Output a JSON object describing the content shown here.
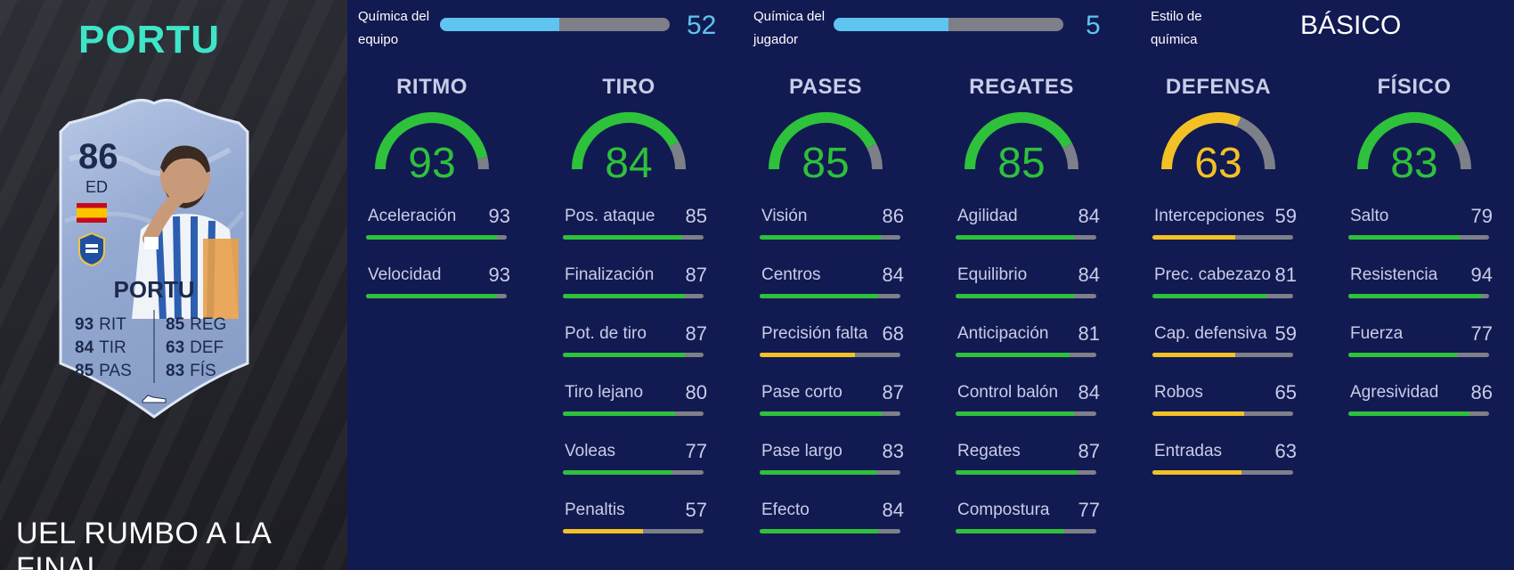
{
  "player": {
    "name_title": "PORTU",
    "card_name": "PORTU",
    "rating": "86",
    "position": "ED",
    "card_stats": [
      {
        "value": "93",
        "label": "RIT"
      },
      {
        "value": "84",
        "label": "TIR"
      },
      {
        "value": "85",
        "label": "PAS"
      },
      {
        "value": "85",
        "label": "REG"
      },
      {
        "value": "63",
        "label": "DEF"
      },
      {
        "value": "83",
        "label": "FÍS"
      }
    ],
    "promo": "UEL RUMBO A LA FINAL"
  },
  "chemistry": {
    "team": {
      "label_line1": "Química del",
      "label_line2": "equipo",
      "value": "52",
      "fill_fraction": 0.52
    },
    "player": {
      "label_line1": "Química del",
      "label_line2": "jugador",
      "value": "5",
      "fill_fraction": 0.5
    },
    "style": {
      "label_line1": "Estilo de",
      "label_line2": "química",
      "value": "BÁSICO"
    }
  },
  "colors": {
    "green": "#2ec13b",
    "yellow": "#f3c124",
    "track": "#7d8088",
    "chem_blue": "#5fc4f0",
    "accent": "#3ee5c8"
  },
  "categories": [
    {
      "name": "RITMO",
      "value": 93,
      "color": "green",
      "stats": [
        {
          "name": "Aceleración",
          "value": 93
        },
        {
          "name": "Velocidad",
          "value": 93
        }
      ]
    },
    {
      "name": "TIRO",
      "value": 84,
      "color": "green",
      "stats": [
        {
          "name": "Pos. ataque",
          "value": 85
        },
        {
          "name": "Finalización",
          "value": 87
        },
        {
          "name": "Pot. de tiro",
          "value": 87
        },
        {
          "name": "Tiro lejano",
          "value": 80
        },
        {
          "name": "Voleas",
          "value": 77
        },
        {
          "name": "Penaltis",
          "value": 57
        }
      ]
    },
    {
      "name": "PASES",
      "value": 85,
      "color": "green",
      "stats": [
        {
          "name": "Visión",
          "value": 86
        },
        {
          "name": "Centros",
          "value": 84
        },
        {
          "name": "Precisión falta",
          "value": 68
        },
        {
          "name": "Pase corto",
          "value": 87
        },
        {
          "name": "Pase largo",
          "value": 83
        },
        {
          "name": "Efecto",
          "value": 84
        }
      ]
    },
    {
      "name": "REGATES",
      "value": 85,
      "color": "green",
      "stats": [
        {
          "name": "Agilidad",
          "value": 84
        },
        {
          "name": "Equilibrio",
          "value": 84
        },
        {
          "name": "Anticipación",
          "value": 81
        },
        {
          "name": "Control balón",
          "value": 84
        },
        {
          "name": "Regates",
          "value": 87
        },
        {
          "name": "Compostura",
          "value": 77
        }
      ]
    },
    {
      "name": "DEFENSA",
      "value": 63,
      "color": "yellow",
      "stats": [
        {
          "name": "Intercepciones",
          "value": 59
        },
        {
          "name": "Prec. cabezazo",
          "value": 81
        },
        {
          "name": "Cap. defensiva",
          "value": 59
        },
        {
          "name": "Robos",
          "value": 65
        },
        {
          "name": "Entradas",
          "value": 63
        }
      ]
    },
    {
      "name": "FÍSICO",
      "value": 83,
      "color": "green",
      "stats": [
        {
          "name": "Salto",
          "value": 79
        },
        {
          "name": "Resistencia",
          "value": 94
        },
        {
          "name": "Fuerza",
          "value": 77
        },
        {
          "name": "Agresividad",
          "value": 86
        }
      ]
    }
  ]
}
